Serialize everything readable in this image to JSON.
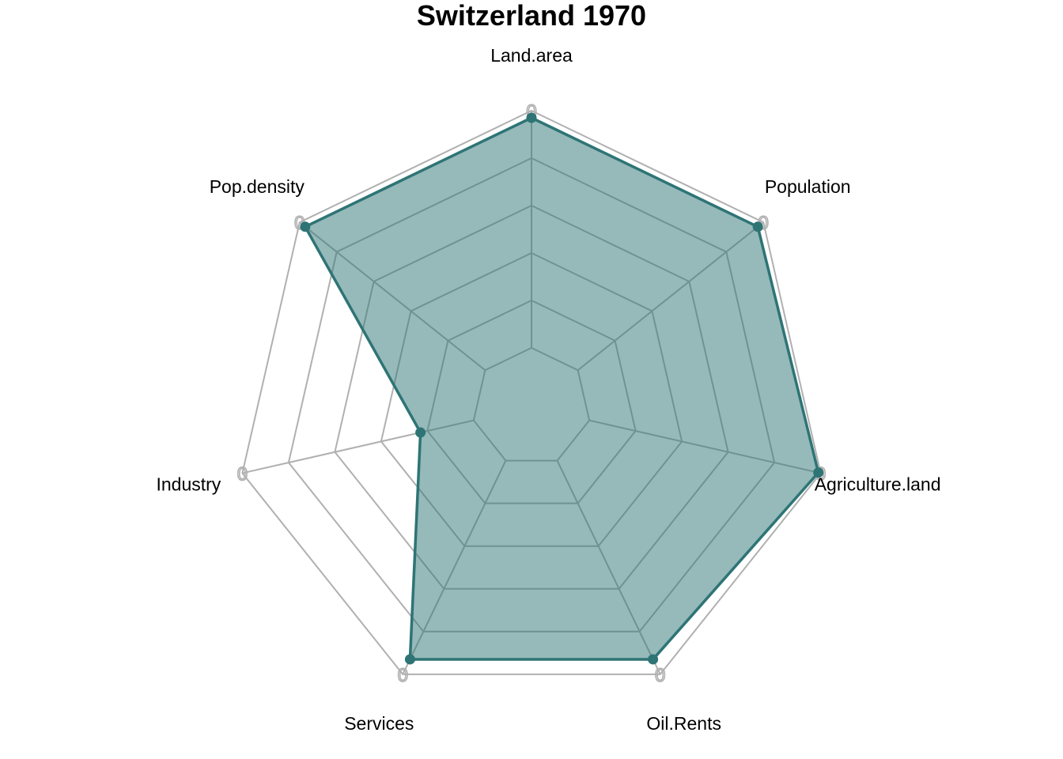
{
  "chart_data": {
    "type": "radar",
    "title": "Switzerland 1970",
    "axes": [
      "Land.area",
      "Population",
      "Agriculture.land",
      "Oil.Rents",
      "Services",
      "Industry",
      "Pop.density"
    ],
    "tick_label": "0",
    "range": [
      0,
      1
    ],
    "grid_levels": 5,
    "inner_offset": 0.2,
    "series": [
      {
        "values": [
          0.97,
          0.97,
          0.99,
          0.93,
          0.93,
          0.23,
          0.97
        ]
      }
    ],
    "colors": {
      "series": "#2e7475",
      "fill": "#2e7475",
      "grid": "#b0b0b0"
    }
  }
}
